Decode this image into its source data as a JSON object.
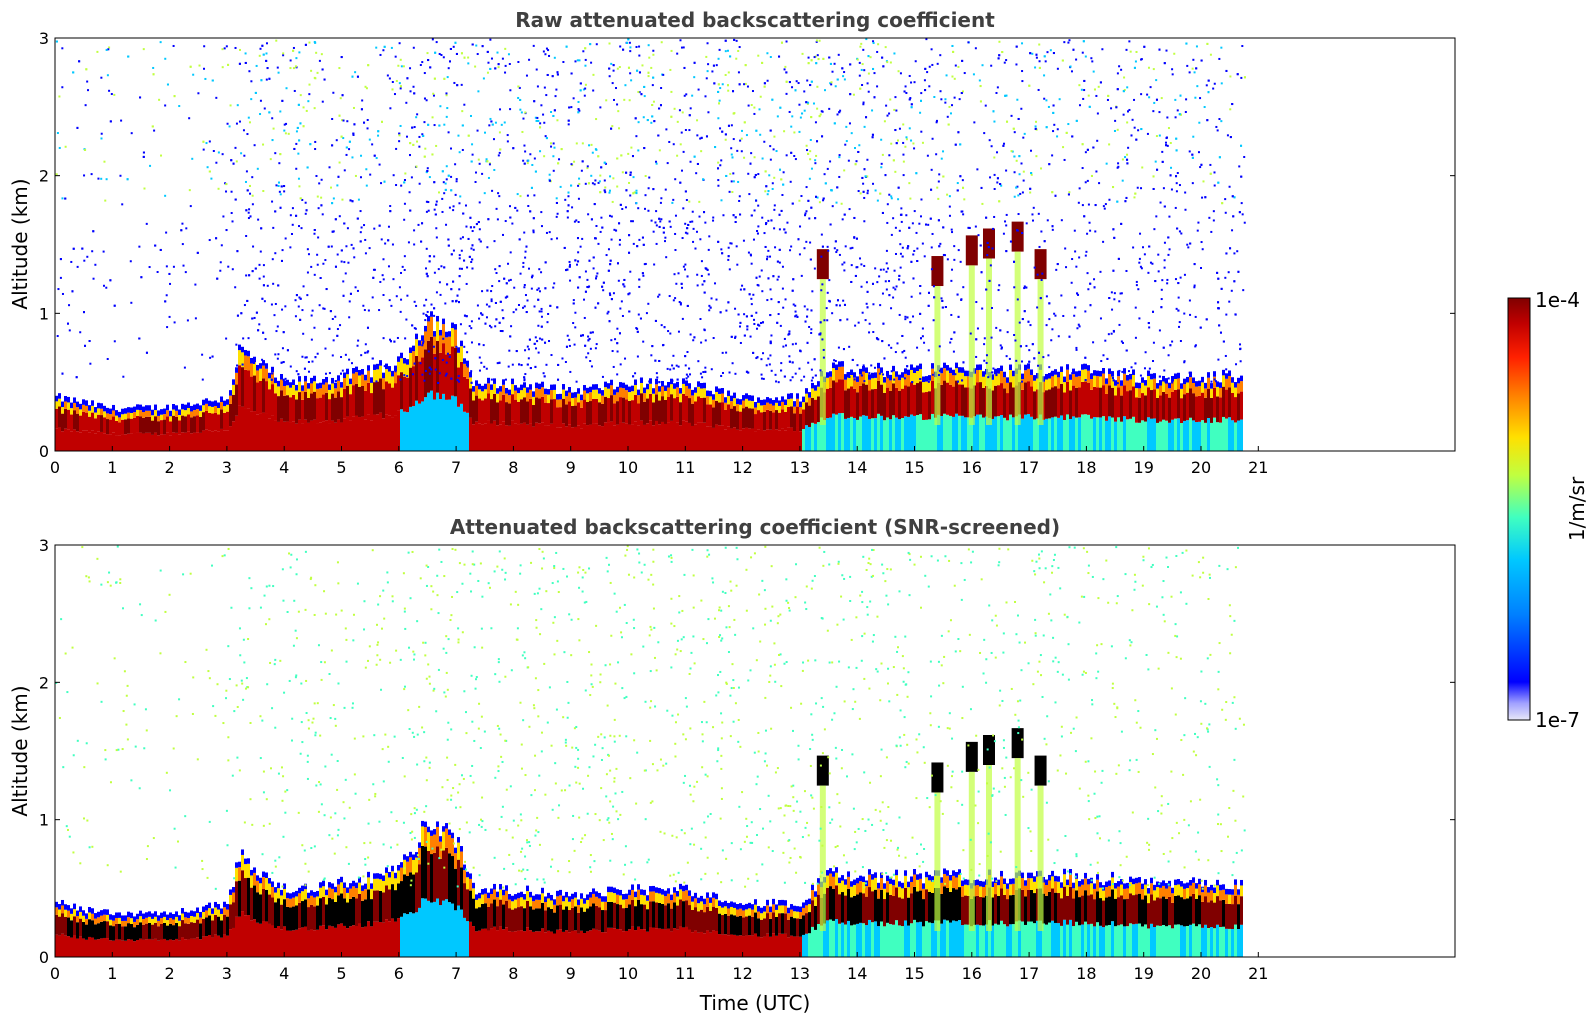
{
  "chart_data": [
    {
      "type": "heatmap",
      "title": "Raw attenuated backscattering coefficient",
      "xlabel": "",
      "ylabel": "Altitude (km)",
      "xlim": [
        0,
        24
      ],
      "ylim": [
        0,
        3
      ],
      "x_ticks": [
        "0",
        "1",
        "2",
        "3",
        "4",
        "5",
        "6",
        "7",
        "8",
        "9",
        "10",
        "11",
        "12",
        "13",
        "14",
        "15",
        "16",
        "17",
        "18",
        "19",
        "20",
        "21"
      ],
      "y_ticks": [
        "0",
        "1",
        "2",
        "3"
      ],
      "data_extent_hours": [
        0,
        20.75
      ],
      "screened": false,
      "boundary_layer_top_km": [
        [
          0,
          0.35
        ],
        [
          1,
          0.27
        ],
        [
          2,
          0.28
        ],
        [
          3,
          0.35
        ],
        [
          3.2,
          0.7
        ],
        [
          4,
          0.45
        ],
        [
          5,
          0.5
        ],
        [
          6,
          0.6
        ],
        [
          6.5,
          0.95
        ],
        [
          7,
          0.8
        ],
        [
          7.3,
          0.45
        ],
        [
          8,
          0.45
        ],
        [
          9,
          0.4
        ],
        [
          10,
          0.45
        ],
        [
          11,
          0.45
        ],
        [
          12,
          0.35
        ],
        [
          13,
          0.35
        ],
        [
          13.5,
          0.6
        ],
        [
          14,
          0.55
        ],
        [
          15,
          0.55
        ],
        [
          16,
          0.55
        ],
        [
          17,
          0.55
        ],
        [
          18,
          0.55
        ],
        [
          19,
          0.5
        ],
        [
          20,
          0.5
        ],
        [
          20.75,
          0.5
        ]
      ],
      "cloud_layers": [
        {
          "t": 13.4,
          "z": 1.35
        },
        {
          "t": 15.4,
          "z": 1.3
        },
        {
          "t": 16.0,
          "z": 1.45
        },
        {
          "t": 16.3,
          "z": 1.5
        },
        {
          "t": 16.8,
          "z": 1.55
        },
        {
          "t": 17.2,
          "z": 1.35
        }
      ]
    },
    {
      "type": "heatmap",
      "title": "Attenuated backscattering coefficient (SNR-screened)",
      "xlabel": "Time (UTC)",
      "ylabel": "Altitude (km)",
      "xlim": [
        0,
        24
      ],
      "ylim": [
        0,
        3
      ],
      "x_ticks": [
        "0",
        "1",
        "2",
        "3",
        "4",
        "5",
        "6",
        "7",
        "8",
        "9",
        "10",
        "11",
        "12",
        "13",
        "14",
        "15",
        "16",
        "17",
        "18",
        "19",
        "20",
        "21"
      ],
      "y_ticks": [
        "0",
        "1",
        "2",
        "3"
      ],
      "data_extent_hours": [
        0,
        20.75
      ],
      "screened": true
    }
  ],
  "colorbar": {
    "max_label": "1e-4",
    "min_label": "1e-7",
    "label": "1/m/sr",
    "colors": [
      "#e8e8f8",
      "#a0a0ff",
      "#0000ff",
      "#0080ff",
      "#00c8ff",
      "#40ffc0",
      "#c0ff40",
      "#ffe000",
      "#ff8000",
      "#ff2000",
      "#c00000",
      "#800000"
    ]
  }
}
